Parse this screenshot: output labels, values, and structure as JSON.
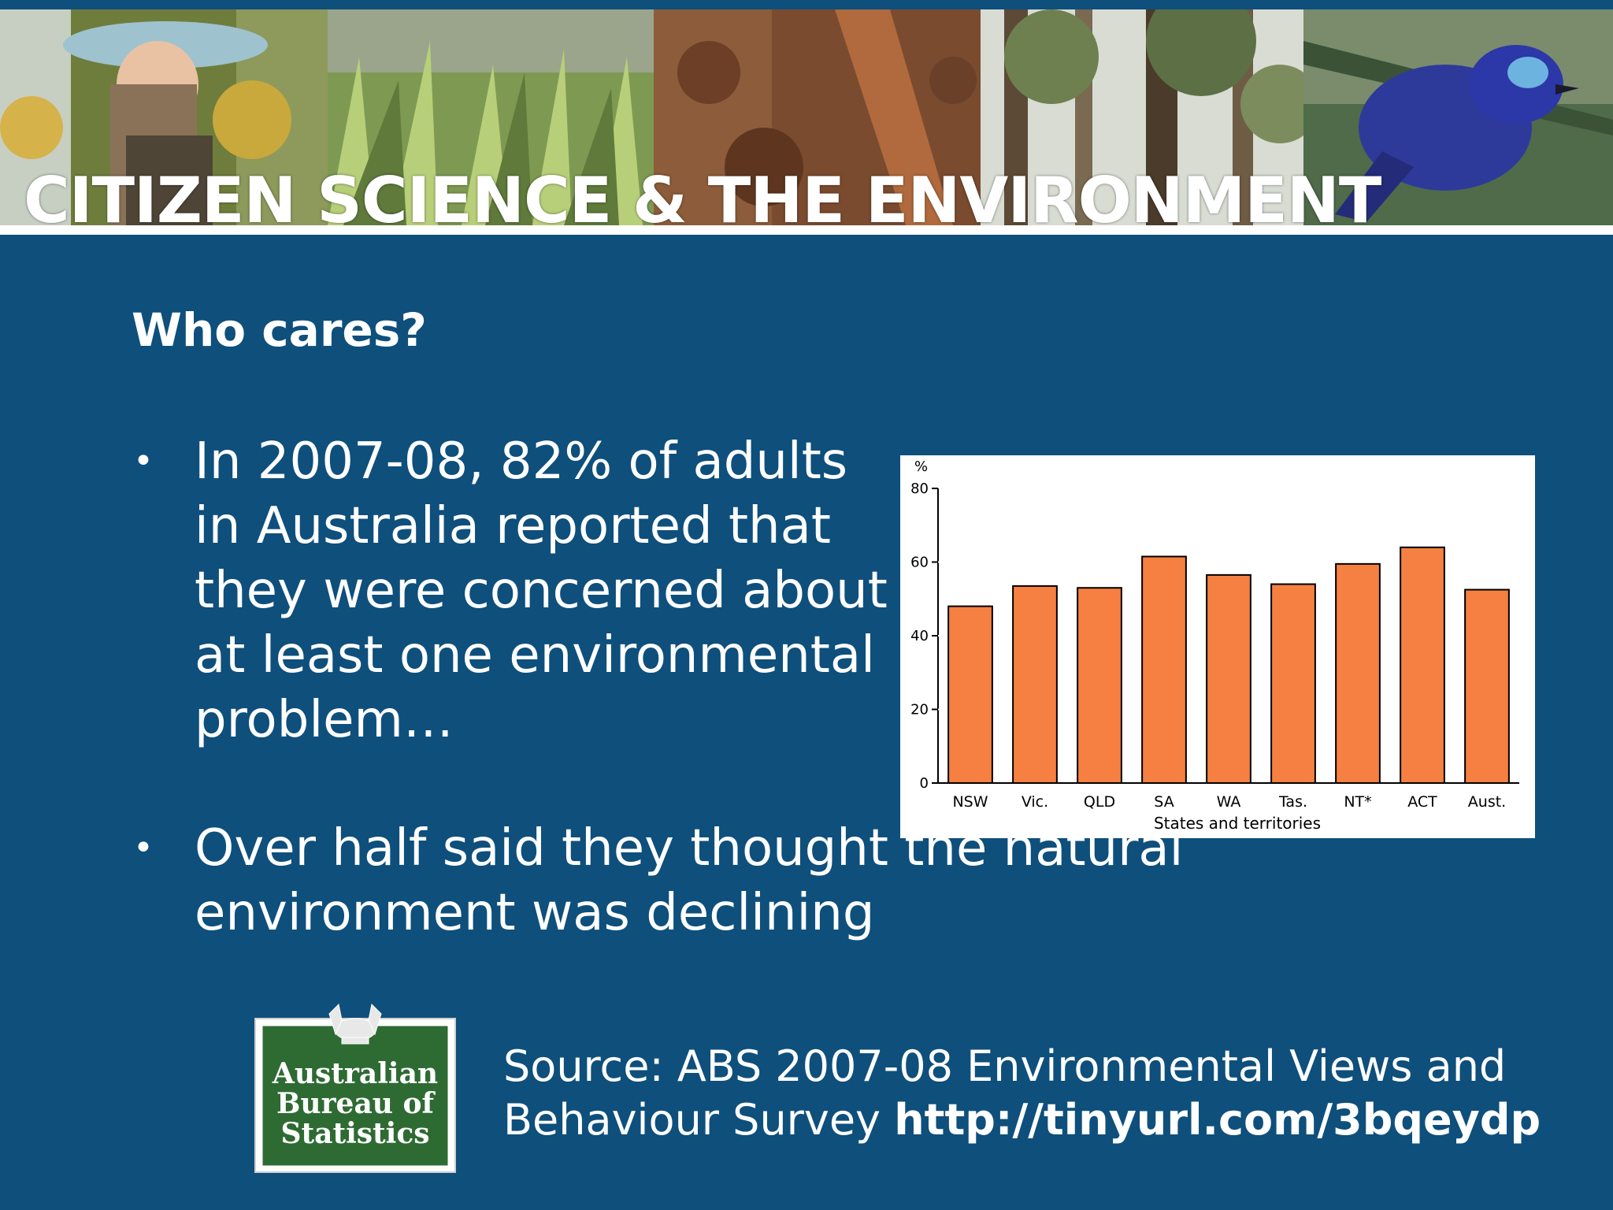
{
  "slide": {
    "title": "CITIZEN SCIENCE & THE ENVIRONMENT",
    "subtitle": "Who cares?",
    "bullets": [
      "In 2007-08, 82% of adults in Australia reported that they were concerned about at least one environmental problem…",
      "Over half said they thought the natural environment was declining"
    ],
    "source_text": "Source: ABS 2007-08 Environmental Views and Behaviour Survey ",
    "source_link": "http://tinyurl.com/3bqeydp"
  },
  "logo": {
    "line1": "Australian",
    "line2": "Bureau of",
    "line3": "Statistics",
    "bg_color": "#2e6b33"
  },
  "colors": {
    "background": "#0e4f7c",
    "bar": "#f58041"
  },
  "chart_data": {
    "type": "bar",
    "categories": [
      "NSW",
      "Vic.",
      "QLD",
      "SA",
      "WA",
      "Tas.",
      "NT*",
      "ACT",
      "Aust."
    ],
    "values": [
      48,
      53.5,
      53,
      61.5,
      56.5,
      54,
      59.5,
      64,
      52.5
    ],
    "ylabel": "%",
    "xlabel": "States and territories",
    "ylim": [
      0,
      80
    ],
    "yticks": [
      0,
      20,
      40,
      60,
      80
    ],
    "grid": true
  }
}
